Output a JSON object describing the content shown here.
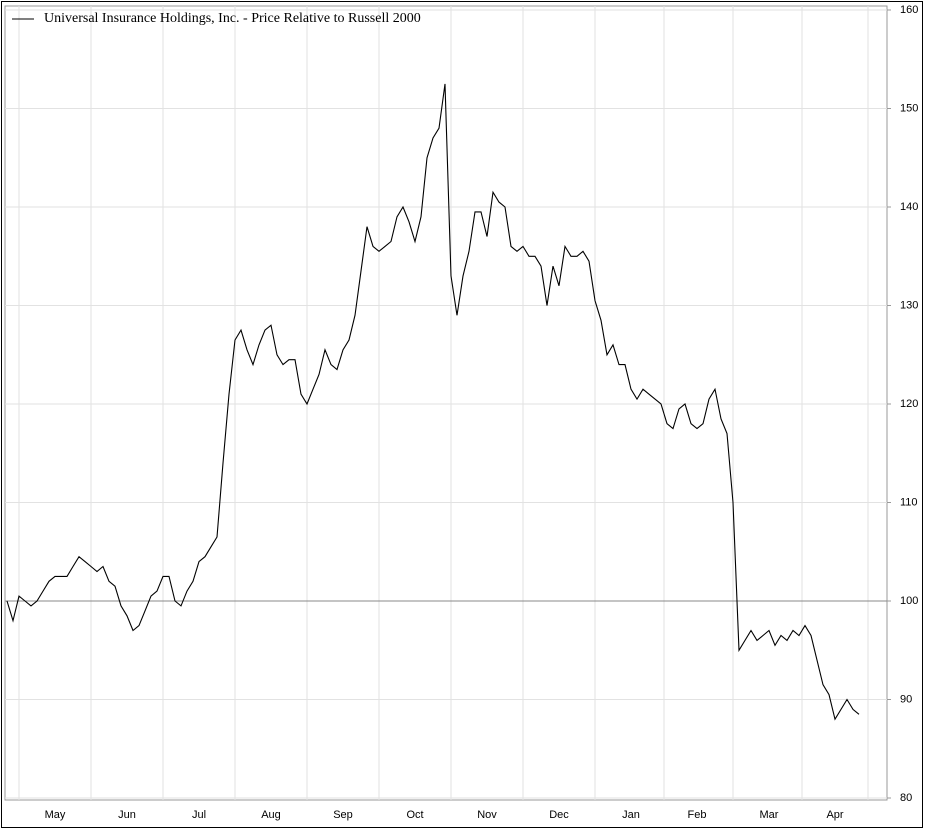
{
  "chart_data": {
    "type": "line",
    "categories": [
      null,
      null,
      null,
      null,
      null,
      null,
      null,
      null,
      "May",
      null,
      null,
      null,
      null,
      null,
      null,
      null,
      null,
      null,
      null,
      null,
      "Jun",
      null,
      null,
      null,
      null,
      null,
      null,
      null,
      null,
      null,
      null,
      null,
      "Jul",
      null,
      null,
      null,
      null,
      null,
      null,
      null,
      null,
      null,
      null,
      null,
      "Aug",
      null,
      null,
      null,
      null,
      null,
      null,
      null,
      null,
      null,
      null,
      null,
      "Sep",
      null,
      null,
      null,
      null,
      null,
      null,
      null,
      null,
      null,
      null,
      null,
      "Oct",
      null,
      null,
      null,
      null,
      null,
      null,
      null,
      null,
      null,
      null,
      null,
      "Nov",
      null,
      null,
      null,
      null,
      null,
      null,
      null,
      null,
      null,
      null,
      null,
      "Dec",
      null,
      null,
      null,
      null,
      null,
      null,
      null,
      null,
      null,
      null,
      null,
      "Jan",
      null,
      null,
      null,
      null,
      null,
      null,
      null,
      null,
      null,
      null,
      "Feb",
      null,
      null,
      null,
      null,
      null,
      null,
      null,
      null,
      null,
      null,
      null,
      "Mar",
      null,
      null,
      null,
      null,
      null,
      null,
      null,
      null,
      null,
      null,
      "Apr",
      null,
      null,
      null,
      null
    ],
    "series": [
      {
        "name": "Universal Insurance Holdings, Inc. - Price Relative to Russell 2000",
        "color": "#000000",
        "values": [
          100,
          98,
          100.5,
          100,
          99.5,
          100,
          101,
          102,
          102.5,
          102.5,
          102.5,
          103.5,
          104.5,
          104,
          103.5,
          103,
          103.5,
          102,
          101.5,
          99.5,
          98.5,
          97,
          97.5,
          99,
          100.5,
          101,
          102.5,
          102.5,
          100,
          99.5,
          101,
          102,
          104,
          104.5,
          105.5,
          106.5,
          114,
          121,
          126.5,
          127.5,
          125.5,
          124,
          126,
          127.5,
          128,
          125,
          124,
          124.5,
          124.5,
          121,
          120,
          121.5,
          123,
          125.5,
          124,
          123.5,
          125.5,
          126.5,
          129,
          133.5,
          138,
          136,
          135.5,
          136,
          136.5,
          139,
          140,
          138.5,
          136.5,
          139,
          145,
          147,
          148,
          152.5,
          133,
          129,
          133,
          135.5,
          139.5,
          139.5,
          137,
          141.5,
          140.5,
          140,
          136,
          135.5,
          136,
          135,
          135,
          134,
          130,
          134,
          132,
          136,
          135,
          135,
          135.5,
          134.5,
          130.5,
          128.5,
          125,
          126,
          124,
          124,
          121.5,
          120.5,
          121.5,
          121,
          120.5,
          120,
          118,
          117.5,
          119.5,
          120,
          118,
          117.5,
          118,
          120.5,
          121.5,
          118.5,
          117,
          110,
          95,
          96,
          97,
          96,
          96.5,
          97,
          95.5,
          96.5,
          96,
          97,
          96.5,
          97.5,
          96.5,
          94,
          91.5,
          90.5,
          88,
          89,
          90,
          89,
          88.5
        ]
      }
    ],
    "ylim": [
      80,
      160
    ],
    "yticks": [
      80,
      90,
      100,
      110,
      120,
      130,
      140,
      150,
      160
    ],
    "reference_line": 100,
    "grid": true,
    "legend": "top-left"
  }
}
